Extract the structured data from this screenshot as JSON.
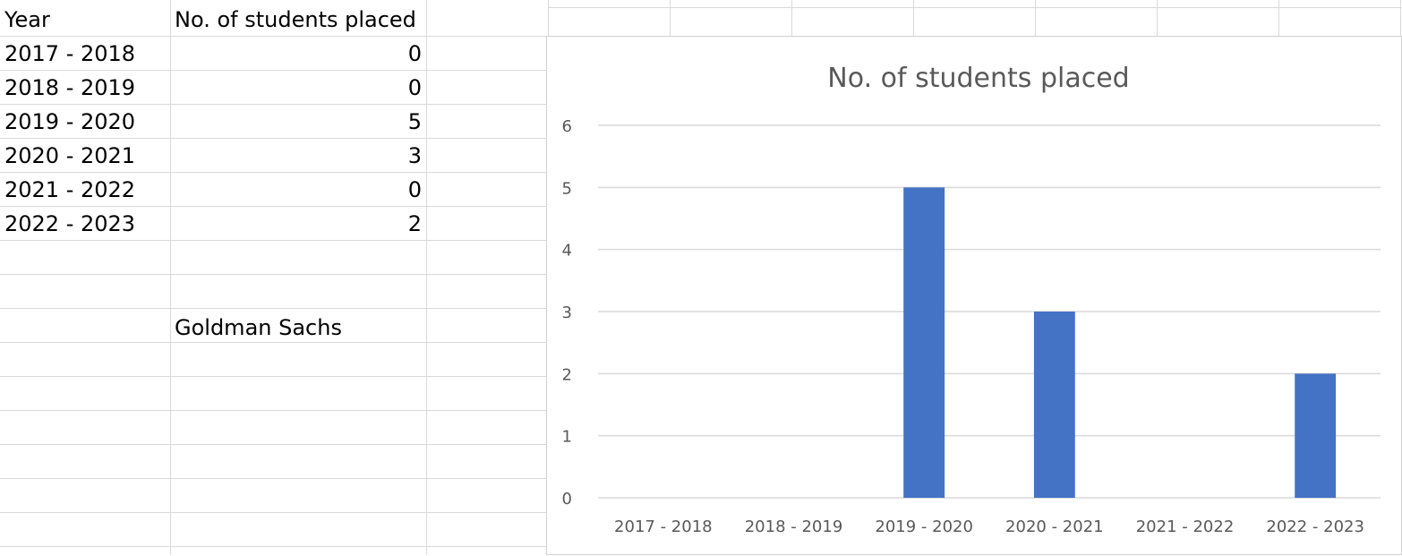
{
  "sheet": {
    "header": {
      "col_a": "Year",
      "col_b": "No. of students placed"
    },
    "rows": [
      {
        "year": "2017 - 2018",
        "count": "0"
      },
      {
        "year": "2018 - 2019",
        "count": "0"
      },
      {
        "year": "2019 - 2020",
        "count": "5"
      },
      {
        "year": "2020 - 2021",
        "count": "3"
      },
      {
        "year": "2021 - 2022",
        "count": "0"
      },
      {
        "year": "2022 - 2023",
        "count": "2"
      }
    ],
    "note": "Goldman Sachs"
  },
  "chart_data": {
    "type": "bar",
    "title": "No. of students placed",
    "categories": [
      "2017 - 2018",
      "2018 - 2019",
      "2019 - 2020",
      "2020 - 2021",
      "2021 - 2022",
      "2022 - 2023"
    ],
    "values": [
      0,
      0,
      5,
      3,
      0,
      2
    ],
    "ylim": [
      0,
      6
    ],
    "yticks": [
      0,
      1,
      2,
      3,
      4,
      5,
      6
    ],
    "grid": true,
    "bar_color": "#4472c4",
    "xlabel": "",
    "ylabel": ""
  }
}
